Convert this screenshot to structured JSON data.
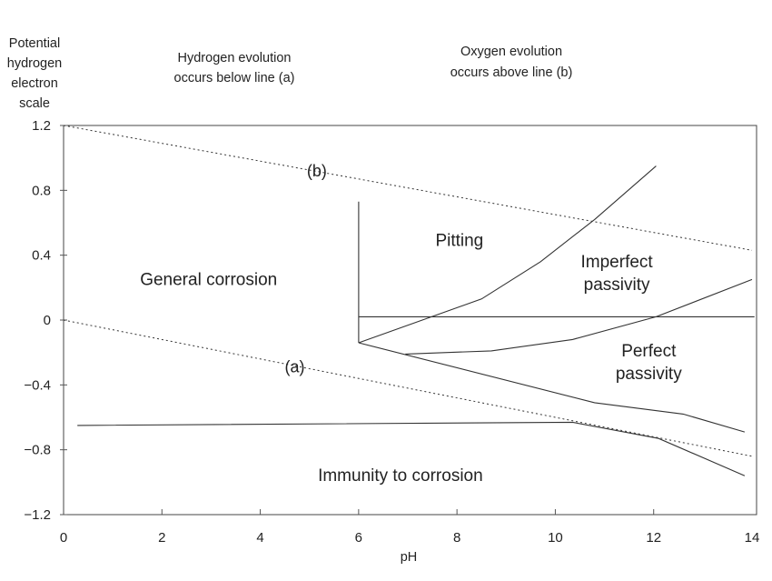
{
  "chart_data": {
    "type": "line",
    "title": "",
    "xlabel": "pH",
    "ylabel": [
      "Potential",
      "hydrogen",
      "electron",
      "scale"
    ],
    "xlim": [
      0,
      14
    ],
    "ylim": [
      -1.2,
      1.2
    ],
    "xticks": [
      "0",
      "2",
      "4",
      "6",
      "8",
      "10",
      "12",
      "14"
    ],
    "xtick_values": [
      0,
      2,
      4,
      6,
      8,
      10,
      12,
      14
    ],
    "yticks": [
      "1.2",
      "0.8",
      "0.4",
      "0",
      "−0.4",
      "−0.8",
      "−1.2"
    ],
    "ytick_values": [
      1.2,
      0.8,
      0.4,
      0,
      -0.4,
      -0.8,
      -1.2
    ],
    "grid": false,
    "notes": {
      "hydrogen": [
        "Hydrogen evolution",
        "occurs below line (a)"
      ],
      "oxygen": [
        "Oxygen evolution",
        "occurs above line (b)"
      ]
    },
    "series": [
      {
        "name": "line (b)",
        "style": "dotted",
        "points": [
          [
            0,
            1.2
          ],
          [
            14,
            0.43
          ]
        ]
      },
      {
        "name": "line (a)",
        "style": "dotted",
        "points": [
          [
            0,
            0
          ],
          [
            14,
            -0.84
          ]
        ]
      },
      {
        "name": "pitting boundary vertical",
        "style": "solid",
        "points": [
          [
            6,
            0.73
          ],
          [
            6,
            -0.14
          ]
        ]
      },
      {
        "name": "pitting potential",
        "style": "solid",
        "points": [
          [
            6,
            0.02
          ],
          [
            14.05,
            0.02
          ]
        ]
      },
      {
        "name": "pitting / imperfect passivity boundary",
        "style": "solid",
        "points": [
          [
            6,
            -0.14
          ],
          [
            8.5,
            0.13
          ],
          [
            9.7,
            0.36
          ],
          [
            10.8,
            0.62
          ],
          [
            12.05,
            0.95
          ]
        ]
      },
      {
        "name": "imperfect / perfect passivity boundary",
        "style": "solid",
        "points": [
          [
            6.95,
            -0.21
          ],
          [
            8.7,
            -0.19
          ],
          [
            10.35,
            -0.12
          ],
          [
            12.05,
            0.02
          ],
          [
            14,
            0.25
          ]
        ]
      },
      {
        "name": "passivity lower boundary",
        "style": "solid",
        "points": [
          [
            6,
            -0.14
          ],
          [
            10.8,
            -0.51
          ],
          [
            12.6,
            -0.58
          ],
          [
            13.85,
            -0.69
          ]
        ]
      },
      {
        "name": "immunity boundary",
        "style": "solid",
        "points": [
          [
            0.28,
            -0.65
          ],
          [
            10.35,
            -0.63
          ],
          [
            12.1,
            -0.73
          ],
          [
            13.85,
            -0.96
          ]
        ]
      }
    ],
    "annotations": [
      {
        "text": "(b)",
        "x": 5.15,
        "y": 0.92,
        "class": "lbl"
      },
      {
        "text": "(a)",
        "x": 4.7,
        "y": -0.29,
        "class": "lbl"
      },
      {
        "text": "General corrosion",
        "x": 2.95,
        "y": 0.25,
        "class": "region"
      },
      {
        "text": "Pitting",
        "x": 8.05,
        "y": 0.49,
        "class": "region"
      },
      {
        "text": "Imperfect",
        "x": 11.25,
        "y": 0.36,
        "class": "region"
      },
      {
        "text": "passivity",
        "x": 11.25,
        "y": 0.22,
        "class": "region"
      },
      {
        "text": "Perfect",
        "x": 11.9,
        "y": -0.19,
        "class": "region"
      },
      {
        "text": "passivity",
        "x": 11.9,
        "y": -0.33,
        "class": "region"
      },
      {
        "text": "Immunity to corrosion",
        "x": 6.85,
        "y": -0.96,
        "class": "region"
      }
    ]
  },
  "colors": {
    "line": "#333333",
    "text": "#222222",
    "background": "#ffffff"
  }
}
